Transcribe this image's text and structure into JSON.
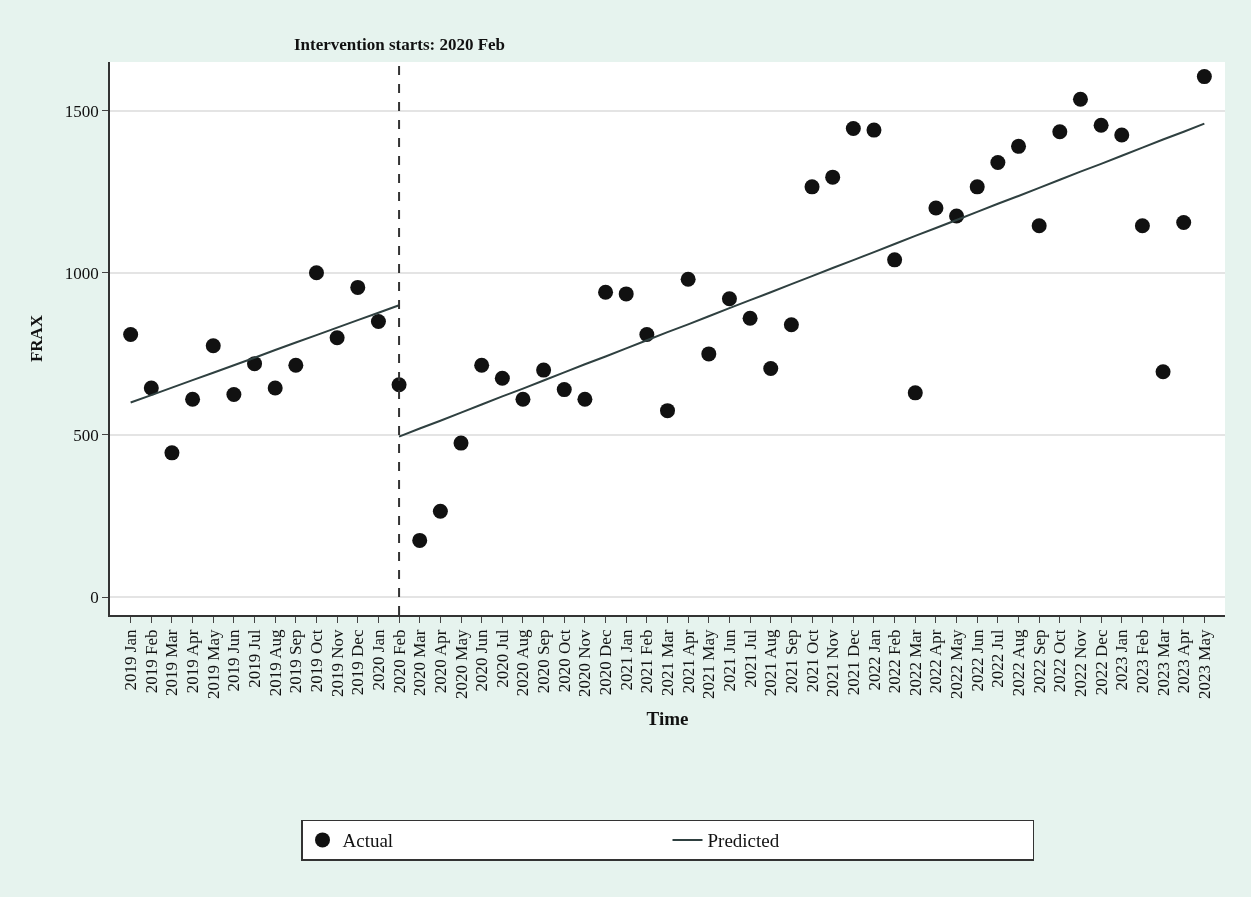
{
  "chart_data": {
    "type": "scatter",
    "xlabel": "Time",
    "ylabel": "FRAX",
    "categories": [
      "2019 Jan",
      "2019 Feb",
      "2019 Mar",
      "2019 Apr",
      "2019 May",
      "2019 Jun",
      "2019 Jul",
      "2019 Aug",
      "2019 Sep",
      "2019 Oct",
      "2019 Nov",
      "2019 Dec",
      "2020 Jan",
      "2020 Feb",
      "2020 Mar",
      "2020 Apr",
      "2020 May",
      "2020 Jun",
      "2020 Jul",
      "2020 Aug",
      "2020 Sep",
      "2020 Oct",
      "2020 Nov",
      "2020 Dec",
      "2021 Jan",
      "2021 Feb",
      "2021 Mar",
      "2021 Apr",
      "2021 May",
      "2021 Jun",
      "2021 Jul",
      "2021 Aug",
      "2021 Sep",
      "2021 Oct",
      "2021 Nov",
      "2021 Dec",
      "2022 Jan",
      "2022 Feb",
      "2022 Mar",
      "2022 Apr",
      "2022 May",
      "2022 Jun",
      "2022 Jul",
      "2022 Aug",
      "2022 Sep",
      "2022 Oct",
      "2022 Nov",
      "2022 Dec",
      "2023 Jan",
      "2023 Feb",
      "2023 Mar",
      "2023 Apr",
      "2023 May"
    ],
    "series": [
      {
        "name": "Actual",
        "marker": "circle",
        "color": "#111111",
        "values": [
          810,
          645,
          445,
          610,
          775,
          625,
          720,
          645,
          715,
          1000,
          800,
          955,
          850,
          655,
          175,
          265,
          475,
          715,
          675,
          610,
          700,
          640,
          610,
          940,
          935,
          810,
          575,
          980,
          750,
          920,
          860,
          705,
          840,
          1265,
          1295,
          1445,
          1440,
          1040,
          630,
          1200,
          1175,
          1265,
          1340,
          1390,
          1145,
          1435,
          1535,
          1455,
          1425,
          1145,
          695,
          1155,
          1605
        ]
      },
      {
        "name": "Predicted",
        "type": "line",
        "line_style": "solid",
        "color": "#2f4040",
        "values": [
          600,
          623,
          646,
          669,
          692,
          715,
          738,
          762,
          785,
          808,
          831,
          854,
          877,
          900,
          null,
          null,
          null,
          null,
          null,
          null,
          null,
          null,
          null,
          null,
          null,
          null,
          null,
          null,
          null,
          null,
          null,
          null,
          null,
          null,
          null,
          null,
          null,
          null,
          null,
          null,
          null,
          null,
          null,
          null,
          null,
          null,
          null,
          null,
          null,
          null,
          null,
          null,
          null
        ]
      },
      {
        "type": "line",
        "line_style": "solid",
        "color": "#2f4040",
        "values": [
          null,
          null,
          null,
          null,
          null,
          null,
          null,
          null,
          null,
          null,
          null,
          null,
          null,
          495,
          520,
          544,
          569,
          594,
          619,
          643,
          668,
          693,
          718,
          742,
          767,
          792,
          817,
          841,
          866,
          891,
          916,
          940,
          965,
          990,
          1015,
          1039,
          1064,
          1089,
          1114,
          1138,
          1163,
          1188,
          1213,
          1237,
          1262,
          1287,
          1312,
          1336,
          1361,
          1386,
          1411,
          1435,
          1460
        ]
      }
    ],
    "ylim": [
      -55,
      1650
    ],
    "yticks": [
      0,
      500,
      1000,
      1500
    ],
    "grid": "y",
    "legend": "bottom",
    "ref_lines": [
      {
        "axis": "x",
        "value": "2020 Feb",
        "label": "Intervention starts: 2020 Feb",
        "line_style": "dashed",
        "color": "#333333"
      }
    ]
  }
}
